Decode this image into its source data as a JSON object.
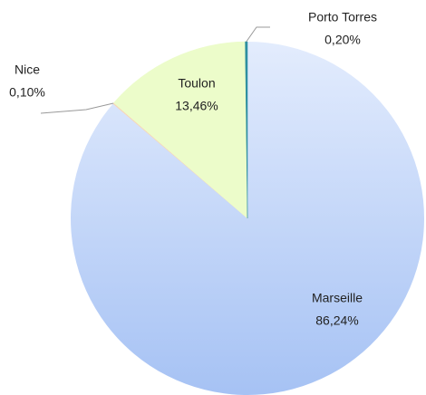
{
  "chart_data": {
    "type": "pie",
    "categories": [
      "Marseille",
      "Nice",
      "Toulon",
      "Porto Torres"
    ],
    "values": [
      86.24,
      0.1,
      13.46,
      0.2
    ],
    "value_labels": [
      "86,24%",
      "0,10%",
      "13,46%",
      "0,20%"
    ],
    "colors": [
      "#bcd2f8",
      "#f7d6b8",
      "#ecfcca",
      "#2e8fa0"
    ]
  }
}
